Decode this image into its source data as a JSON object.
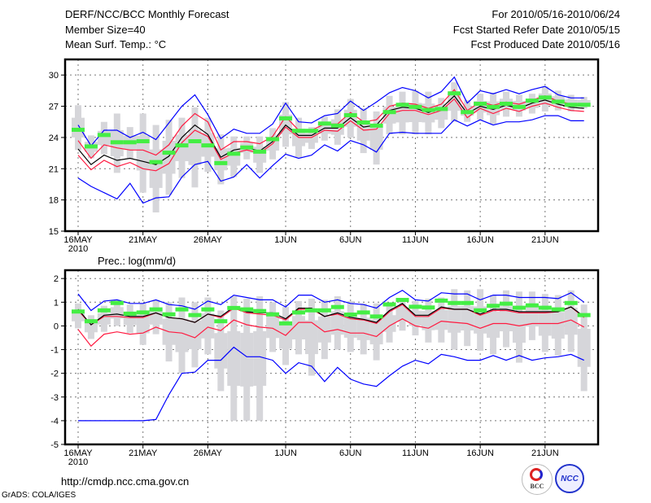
{
  "header": {
    "title": "DERF/NCC/BCC Monthly Forecast",
    "member_size": "Member Size=40",
    "variable": "Mean Surf. Temp.: °C",
    "forecast_period": "For 2010/05/16-2010/06/24",
    "started_date": "Fcst Started Refer Date 2010/05/15",
    "produced_date": "Fcst Produced Date 2010/05/16"
  },
  "footer": {
    "url": "http://cmdp.ncc.cma.gov.cn",
    "credit": "GrADS: COLA/IGES",
    "logo_left": "BCC",
    "logo_right": "NCC"
  },
  "colors": {
    "extreme": "#0000ff",
    "spread": "#ff1a40",
    "mean": "#000000",
    "observed": "#44ee44",
    "box": "#d6d6da"
  },
  "chart_data": [
    {
      "type": "line",
      "title": "Mean Surf. Temp.: °C",
      "ylabel": "°C",
      "ylim": [
        15,
        31.5
      ],
      "yticks": [
        15,
        18,
        21,
        24,
        27,
        30
      ],
      "grid": true,
      "xtick_labels": [
        "16MAY",
        "21MAY",
        "26MAY",
        "1JUN",
        "6JUN",
        "11JUN",
        "16JUN",
        "21JUN"
      ],
      "xtick_days": [
        0,
        5,
        10,
        16,
        21,
        26,
        31,
        36
      ],
      "year_label": "2010",
      "days": 40,
      "series": [
        {
          "name": "max",
          "color": "#0000ff",
          "values": [
            25.2,
            23.2,
            24.7,
            24.7,
            24.0,
            24.5,
            23.8,
            25.4,
            27.0,
            28.1,
            26.2,
            23.9,
            24.8,
            24.4,
            24.4,
            25.3,
            27.3,
            25.5,
            25.4,
            26.1,
            26.3,
            27.5,
            26.6,
            27.4,
            28.3,
            28.8,
            28.5,
            27.8,
            28.4,
            29.8,
            27.3,
            28.5,
            28.2,
            28.6,
            28.2,
            28.6,
            28.9,
            28.1,
            27.8,
            27.8
          ]
        },
        {
          "name": "upper",
          "color": "#ff1a40",
          "values": [
            23.7,
            22.0,
            23.3,
            23.0,
            22.8,
            22.8,
            22.3,
            23.3,
            25.1,
            26.3,
            25.5,
            22.8,
            23.6,
            23.6,
            23.4,
            24.1,
            26.0,
            24.7,
            24.7,
            25.3,
            25.3,
            26.4,
            25.5,
            25.7,
            27.0,
            27.3,
            27.2,
            26.8,
            27.2,
            28.6,
            26.6,
            27.4,
            27.1,
            27.4,
            27.2,
            27.6,
            28.0,
            27.5,
            27.2,
            27.1
          ]
        },
        {
          "name": "mean",
          "color": "#000000",
          "values": [
            22.9,
            21.4,
            22.3,
            21.8,
            22.0,
            21.7,
            21.4,
            22.2,
            24.0,
            25.2,
            24.3,
            22.1,
            22.8,
            23.0,
            22.7,
            23.6,
            25.2,
            24.2,
            24.2,
            24.9,
            24.9,
            25.9,
            25.0,
            25.2,
            26.6,
            26.9,
            26.8,
            26.4,
            26.8,
            28.0,
            26.3,
            27.0,
            26.7,
            27.1,
            26.8,
            27.3,
            27.6,
            27.2,
            26.9,
            26.8
          ]
        },
        {
          "name": "lower",
          "color": "#ff1a40",
          "values": [
            22.3,
            20.9,
            21.8,
            21.2,
            21.6,
            21.0,
            20.8,
            21.5,
            23.5,
            24.7,
            24.1,
            21.9,
            22.5,
            22.8,
            22.5,
            23.4,
            25.0,
            24.0,
            24.0,
            24.7,
            24.6,
            25.6,
            24.7,
            24.8,
            26.3,
            26.6,
            26.6,
            26.2,
            26.6,
            27.7,
            25.9,
            26.8,
            26.3,
            26.8,
            26.5,
            27.0,
            27.3,
            26.9,
            26.6,
            26.5
          ]
        },
        {
          "name": "min",
          "color": "#0000ff",
          "values": [
            20.1,
            19.3,
            18.7,
            18.1,
            19.6,
            17.7,
            18.2,
            18.3,
            20.2,
            21.4,
            21.7,
            19.8,
            20.2,
            21.4,
            20.1,
            21.3,
            22.4,
            22.0,
            22.3,
            23.3,
            22.7,
            23.7,
            23.3,
            22.6,
            24.4,
            24.5,
            24.4,
            24.4,
            24.4,
            25.7,
            25.1,
            25.7,
            25.2,
            25.5,
            25.5,
            25.7,
            26.1,
            26.1,
            25.6,
            25.6
          ]
        }
      ],
      "observed": [
        24.7,
        23.1,
        24.2,
        23.5,
        23.5,
        23.6,
        21.6,
        22.5,
        23.2,
        23.6,
        23.2,
        21.5,
        22.4,
        23.0,
        22.6,
        23.8,
        25.8,
        24.6,
        24.6,
        25.3,
        25.1,
        26.1,
        25.4,
        25.1,
        26.4,
        27.1,
        26.9,
        26.6,
        26.7,
        28.2,
        26.4,
        27.2,
        26.9,
        27.2,
        26.9,
        27.5,
        27.8,
        27.4,
        27.1,
        27.1
      ],
      "box_high": [
        27.1,
        24.2,
        25.5,
        26.3,
        25.0,
        26.3,
        25.2,
        25.7,
        25.9,
        26.9,
        25.9,
        24.3,
        24.1,
        24.1,
        24.1,
        24.9,
        27.4,
        25.9,
        25.0,
        26.0,
        26.7,
        27.7,
        26.8,
        26.5,
        28.0,
        28.4,
        28.5,
        28.4,
        27.8,
        29.3,
        27.6,
        28.2,
        28.3,
        28.4,
        28.1,
        28.2,
        28.9,
        28.5,
        28.1,
        27.9
      ],
      "box_low": [
        22.8,
        22.0,
        22.4,
        20.6,
        22.0,
        18.7,
        16.8,
        18.5,
        20.1,
        19.2,
        20.7,
        19.5,
        20.2,
        21.9,
        20.6,
        21.9,
        23.1,
        22.1,
        22.9,
        23.7,
        23.3,
        24.0,
        22.5,
        21.4,
        24.3,
        24.3,
        24.3,
        24.3,
        24.9,
        25.5,
        25.5,
        25.7,
        25.3,
        26.0,
        26.0,
        26.3,
        26.5,
        26.6,
        26.5,
        26.8
      ]
    },
    {
      "type": "line",
      "title": "Prec.: log(mm/d)",
      "ylabel": "log(mm/d)",
      "ylim": [
        -5,
        2.35
      ],
      "yticks": [
        -5,
        -4,
        -3,
        -2,
        -1,
        0,
        1,
        2
      ],
      "grid": true,
      "xtick_labels": [
        "16MAY",
        "21MAY",
        "26MAY",
        "1JUN",
        "6JUN",
        "11JUN",
        "16JUN",
        "21JUN"
      ],
      "xtick_days": [
        0,
        5,
        10,
        16,
        21,
        26,
        31,
        36
      ],
      "year_label": "2010",
      "days": 40,
      "series": [
        {
          "name": "max",
          "color": "#0000ff",
          "values": [
            1.35,
            0.65,
            1.05,
            1.1,
            0.95,
            0.95,
            1.1,
            0.9,
            0.85,
            0.7,
            1.05,
            0.9,
            1.3,
            1.2,
            1.1,
            1.1,
            0.8,
            1.3,
            1.3,
            1.0,
            1.1,
            0.95,
            0.9,
            0.75,
            1.2,
            1.5,
            1.1,
            1.05,
            1.4,
            1.35,
            1.35,
            1.1,
            1.3,
            1.3,
            1.2,
            1.2,
            1.2,
            1.15,
            1.4,
            1.0
          ]
        },
        {
          "name": "upper",
          "color": "#ff1a40",
          "values": [
            0.65,
            0.05,
            0.4,
            0.4,
            0.35,
            0.35,
            0.55,
            0.35,
            0.3,
            0.15,
            0.5,
            0.35,
            0.75,
            0.55,
            0.5,
            0.45,
            0.25,
            0.7,
            0.7,
            0.4,
            0.5,
            0.3,
            0.25,
            0.1,
            0.6,
            0.9,
            0.4,
            0.4,
            0.75,
            0.7,
            0.7,
            0.45,
            0.65,
            0.65,
            0.55,
            0.55,
            0.55,
            0.6,
            0.8,
            0.35
          ]
        },
        {
          "name": "mean",
          "color": "#000000",
          "values": [
            0.7,
            0.05,
            0.45,
            0.5,
            0.4,
            0.4,
            0.55,
            0.35,
            0.3,
            0.15,
            0.5,
            0.4,
            0.8,
            0.6,
            0.55,
            0.55,
            0.3,
            0.75,
            0.75,
            0.4,
            0.55,
            0.36,
            0.28,
            0.15,
            0.65,
            0.95,
            0.45,
            0.45,
            0.8,
            0.7,
            0.7,
            0.5,
            0.7,
            0.7,
            0.6,
            0.6,
            0.6,
            0.6,
            0.8,
            0.4
          ]
        },
        {
          "name": "lower",
          "color": "#ff1a40",
          "values": [
            -0.15,
            -0.85,
            -0.35,
            -0.25,
            -0.35,
            -0.3,
            -0.05,
            -0.25,
            -0.3,
            -0.5,
            -0.05,
            -0.2,
            0.25,
            0.05,
            -0.05,
            -0.1,
            -0.4,
            0.15,
            0.15,
            -0.25,
            -0.15,
            -0.3,
            -0.3,
            -0.45,
            0.0,
            0.3,
            0.0,
            -0.1,
            0.2,
            0.15,
            0.1,
            -0.1,
            0.1,
            0.1,
            0.0,
            0.1,
            0.1,
            0.1,
            0.25,
            -0.05
          ]
        },
        {
          "name": "min",
          "color": "#0000ff",
          "values": [
            -4,
            -4,
            -4,
            -4,
            -4,
            -4,
            -3.95,
            -2.9,
            -2.0,
            -1.95,
            -1.45,
            -1.45,
            -0.9,
            -1.3,
            -1.3,
            -1.45,
            -2.0,
            -1.55,
            -1.7,
            -2.35,
            -1.75,
            -2.25,
            -2.45,
            -2.55,
            -2.1,
            -1.7,
            -1.45,
            -1.6,
            -1.2,
            -1.3,
            -1.45,
            -1.45,
            -1.25,
            -1.45,
            -1.25,
            -1.45,
            -1.35,
            -1.3,
            -1.2,
            -1.45
          ]
        }
      ],
      "observed": [
        0.59,
        0.18,
        0.64,
        0.95,
        0.5,
        0.55,
        0.68,
        0.47,
        0.68,
        0.44,
        0.68,
        0.18,
        0.74,
        0.68,
        0.61,
        0.47,
        0.09,
        0.55,
        0.64,
        0.64,
        0.78,
        0.46,
        0.55,
        0.38,
        0.89,
        1.08,
        0.79,
        0.76,
        1.05,
        0.95,
        0.95,
        0.64,
        0.83,
        0.92,
        0.75,
        0.85,
        0.75,
        0.68,
        0.95,
        0.44
      ],
      "box_high": [
        0.95,
        0.45,
        0.85,
        1.1,
        0.9,
        0.95,
        1.1,
        1.0,
        1.2,
        1.0,
        1.2,
        0.65,
        1.25,
        1.15,
        1.25,
        1.0,
        0.8,
        1.05,
        1.15,
        1.1,
        1.25,
        1.05,
        0.95,
        0.95,
        0.9,
        1.15,
        1.05,
        1.15,
        1.2,
        1.55,
        1.5,
        1.55,
        1.3,
        1.5,
        1.45,
        1.45,
        1.35,
        1.3,
        1.5,
        0.9
      ],
      "box_low": [
        -0.1,
        -0.55,
        -0.25,
        0.0,
        -0.3,
        -0.8,
        -0.35,
        -1.5,
        -2.0,
        -1.75,
        -1.2,
        -2.75,
        -4.0,
        -4.0,
        -4.0,
        -1.1,
        -1.65,
        -1.2,
        -2.1,
        -1.4,
        -1.0,
        -1.1,
        -1.2,
        -1.45,
        -0.7,
        -0.2,
        -0.4,
        -0.7,
        -0.7,
        -1.0,
        -0.85,
        -1.05,
        -1.2,
        -0.9,
        -1.55,
        -0.6,
        -1.1,
        -1.25,
        -1.1,
        -2.75
      ]
    }
  ]
}
